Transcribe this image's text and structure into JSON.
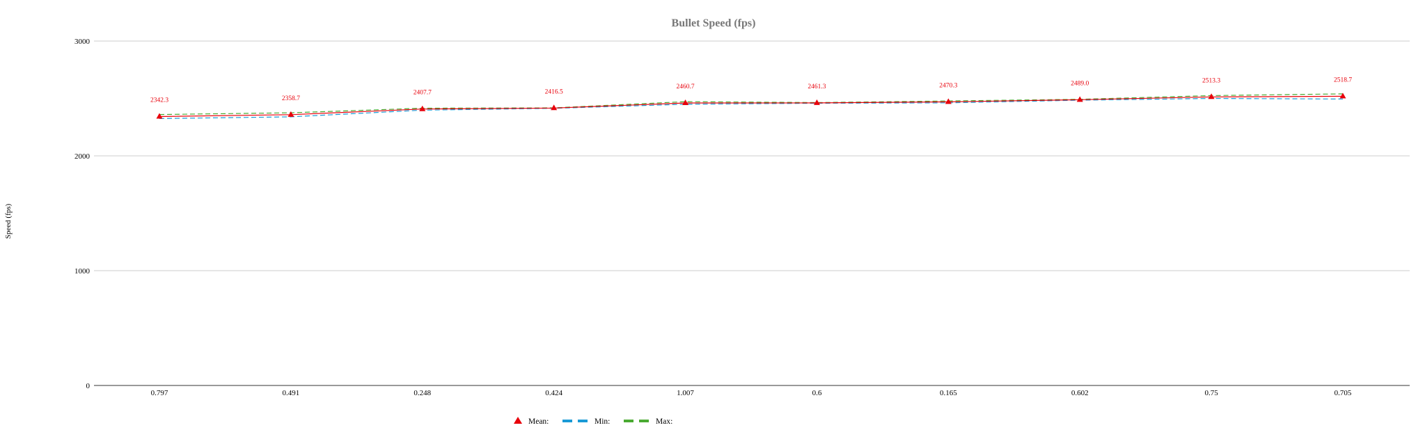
{
  "chart_data": {
    "type": "line",
    "title": "Bullet Speed (fps)",
    "xlabel": "",
    "ylabel": "Speed (fps)",
    "ylim": [
      0,
      3000
    ],
    "yticks": [
      0,
      1000,
      2000,
      3000
    ],
    "grid": true,
    "legend_position": "bottom",
    "categories": [
      "0.797",
      "0.491",
      "0.248",
      "0.424",
      "1.007",
      "0.6",
      "0.165",
      "0.602",
      "0.75",
      "0.705"
    ],
    "data_labels": [
      "2342.3",
      "2358.7",
      "2407.7",
      "2416.5",
      "2460.7",
      "2461.3",
      "2470.3",
      "2489.0",
      "2513.3",
      "2518.7"
    ],
    "series": [
      {
        "name": "Mean:",
        "marker": "triangle",
        "color": "#e8000b",
        "dash": "solid",
        "values": [
          2342.3,
          2358.7,
          2407.7,
          2416.5,
          2460.7,
          2461.3,
          2470.3,
          2489.0,
          2513.3,
          2518.7
        ]
      },
      {
        "name": "Min:",
        "marker": "none",
        "color": "#1a9ad6",
        "dash": "dashed",
        "values": [
          2325,
          2340,
          2398,
          2414,
          2450,
          2458,
          2462,
          2485,
          2500,
          2495
        ]
      },
      {
        "name": "Max:",
        "marker": "none",
        "color": "#4aaa32",
        "dash": "dashed",
        "values": [
          2360,
          2375,
          2415,
          2418,
          2472,
          2464,
          2478,
          2493,
          2525,
          2540
        ]
      }
    ]
  }
}
